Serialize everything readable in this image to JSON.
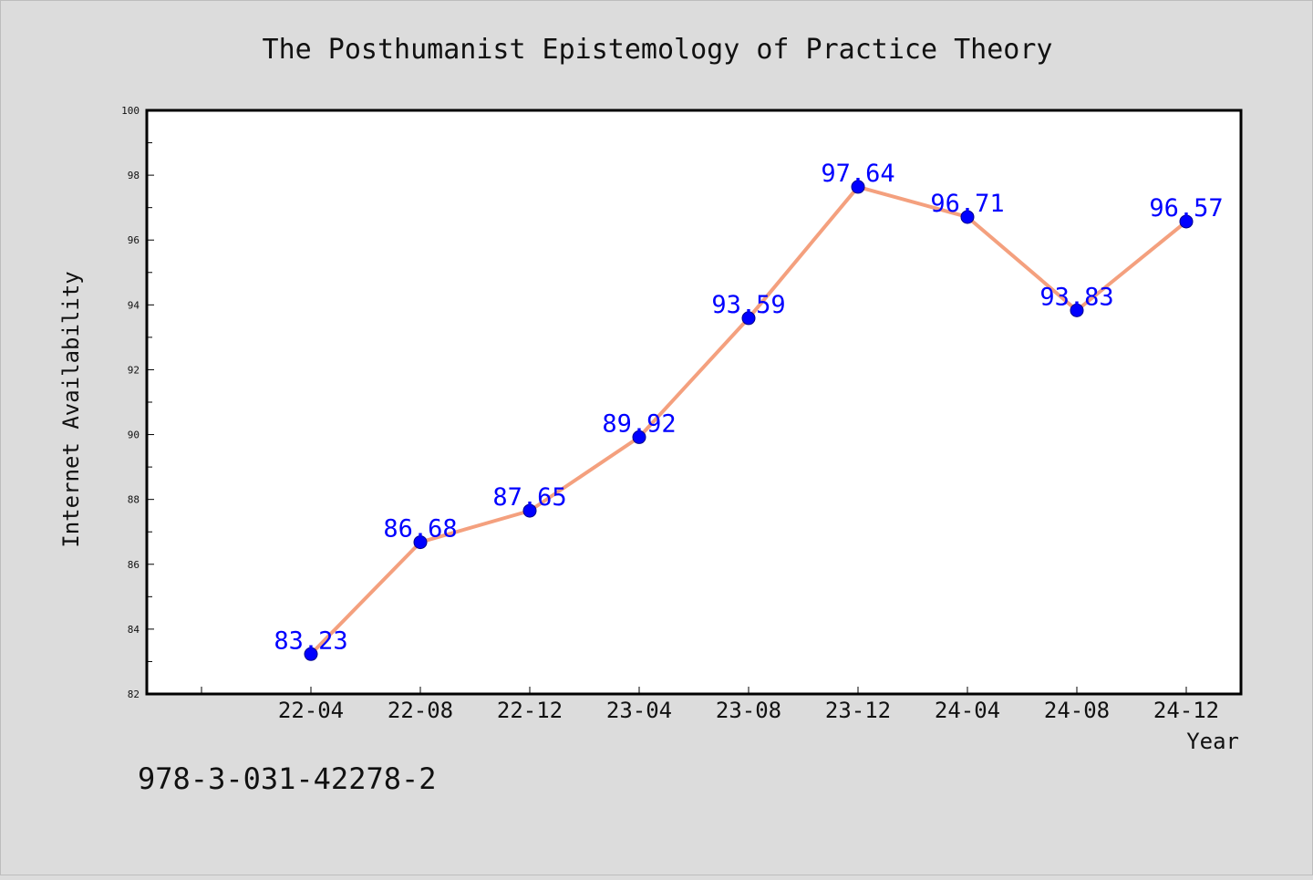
{
  "figure": {
    "background": "#dcdcdc",
    "plot_background": "#ffffff",
    "line_color": "#f4a07e",
    "marker_color": "#0000ff",
    "label_color": "#0000ff",
    "footer_text": "978-3-031-42278-2"
  },
  "chart_data": {
    "type": "line",
    "title": "The Posthumanist Epistemology of Practice Theory",
    "xlabel": "Year",
    "ylabel": "Internet Availability",
    "categories": [
      "22-04",
      "22-08",
      "22-12",
      "23-04",
      "23-08",
      "23-12",
      "24-04",
      "24-08",
      "24-12"
    ],
    "series": [
      {
        "values": [
          83.23,
          86.68,
          87.65,
          89.92,
          93.59,
          97.64,
          96.71,
          93.83,
          96.57
        ]
      }
    ],
    "data_labels": [
      "83.23",
      "86.68",
      "87.65",
      "89.92",
      "93.59",
      "97.64",
      "96.71",
      "93.83",
      "96.57"
    ],
    "ylim": [
      82,
      100
    ],
    "yticks": [
      82,
      84,
      86,
      88,
      90,
      92,
      94,
      96,
      98,
      100
    ],
    "ytick_labels": [
      "82",
      "84",
      "86",
      "88",
      "90",
      "92",
      "94",
      "96",
      "98",
      "100"
    ],
    "grid": false,
    "legend": "none"
  }
}
